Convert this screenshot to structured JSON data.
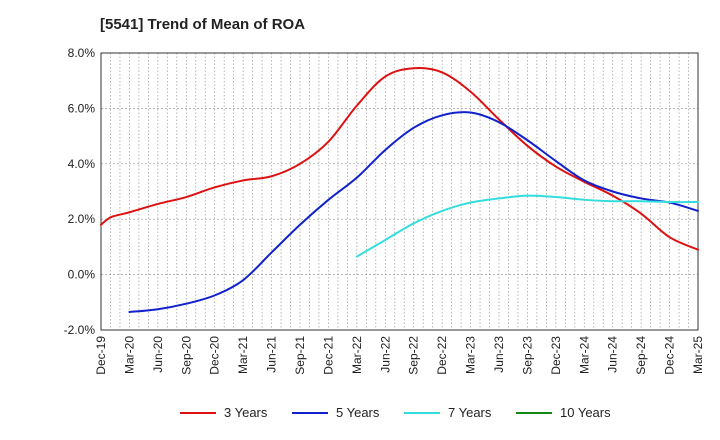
{
  "chart_data": {
    "type": "line",
    "title": "[5541]  Trend of Mean of ROA",
    "xlabel": "",
    "ylabel": "",
    "ylim": [
      -2.0,
      8.0
    ],
    "y_ticks": [
      "-2.0%",
      "0.0%",
      "2.0%",
      "4.0%",
      "6.0%",
      "8.0%"
    ],
    "y_tick_values": [
      -2,
      0,
      2,
      4,
      6,
      8
    ],
    "x_ticks": [
      "Dec-19",
      "Mar-20",
      "Jun-20",
      "Sep-20",
      "Dec-20",
      "Mar-21",
      "Jun-21",
      "Sep-21",
      "Dec-21",
      "Mar-22",
      "Jun-22",
      "Sep-22",
      "Dec-22",
      "Mar-23",
      "Jun-23",
      "Sep-23",
      "Dec-23",
      "Mar-24",
      "Jun-24",
      "Sep-24",
      "Dec-24",
      "Mar-25"
    ],
    "grid": true,
    "legend_position": "bottom",
    "series": [
      {
        "name": "3 Years",
        "color": "#dd1111",
        "points": [
          [
            0,
            1.8
          ],
          [
            0.3,
            2.05
          ],
          [
            0.6,
            2.15
          ],
          [
            1,
            2.25
          ],
          [
            2,
            2.55
          ],
          [
            3,
            2.8
          ],
          [
            4,
            3.15
          ],
          [
            5,
            3.4
          ],
          [
            6,
            3.55
          ],
          [
            7,
            4.0
          ],
          [
            8,
            4.8
          ],
          [
            9,
            6.1
          ],
          [
            10,
            7.15
          ],
          [
            11,
            7.45
          ],
          [
            12,
            7.3
          ],
          [
            13,
            6.6
          ],
          [
            14,
            5.6
          ],
          [
            15,
            4.65
          ],
          [
            16,
            3.9
          ],
          [
            17,
            3.35
          ],
          [
            18,
            2.85
          ],
          [
            19,
            2.2
          ],
          [
            20,
            1.35
          ],
          [
            21,
            0.9
          ]
        ]
      },
      {
        "name": "5 Years",
        "color": "#1122cc",
        "points": [
          [
            1,
            -1.35
          ],
          [
            2,
            -1.25
          ],
          [
            3,
            -1.05
          ],
          [
            4,
            -0.75
          ],
          [
            5,
            -0.2
          ],
          [
            6,
            0.8
          ],
          [
            7,
            1.8
          ],
          [
            8,
            2.7
          ],
          [
            9,
            3.5
          ],
          [
            10,
            4.5
          ],
          [
            11,
            5.3
          ],
          [
            12,
            5.75
          ],
          [
            13,
            5.85
          ],
          [
            14,
            5.5
          ],
          [
            15,
            4.85
          ],
          [
            16,
            4.1
          ],
          [
            17,
            3.4
          ],
          [
            18,
            3.0
          ],
          [
            19,
            2.75
          ],
          [
            20,
            2.6
          ],
          [
            21,
            2.3
          ]
        ]
      },
      {
        "name": "7 Years",
        "color": "#33dddd",
        "points": [
          [
            9,
            0.65
          ],
          [
            10,
            1.25
          ],
          [
            11,
            1.85
          ],
          [
            12,
            2.3
          ],
          [
            13,
            2.6
          ],
          [
            14,
            2.75
          ],
          [
            15,
            2.85
          ],
          [
            16,
            2.8
          ],
          [
            17,
            2.7
          ],
          [
            18,
            2.65
          ],
          [
            19,
            2.65
          ],
          [
            20,
            2.62
          ],
          [
            21,
            2.62
          ]
        ]
      },
      {
        "name": "10 Years",
        "color": "#118811",
        "points": []
      }
    ]
  }
}
